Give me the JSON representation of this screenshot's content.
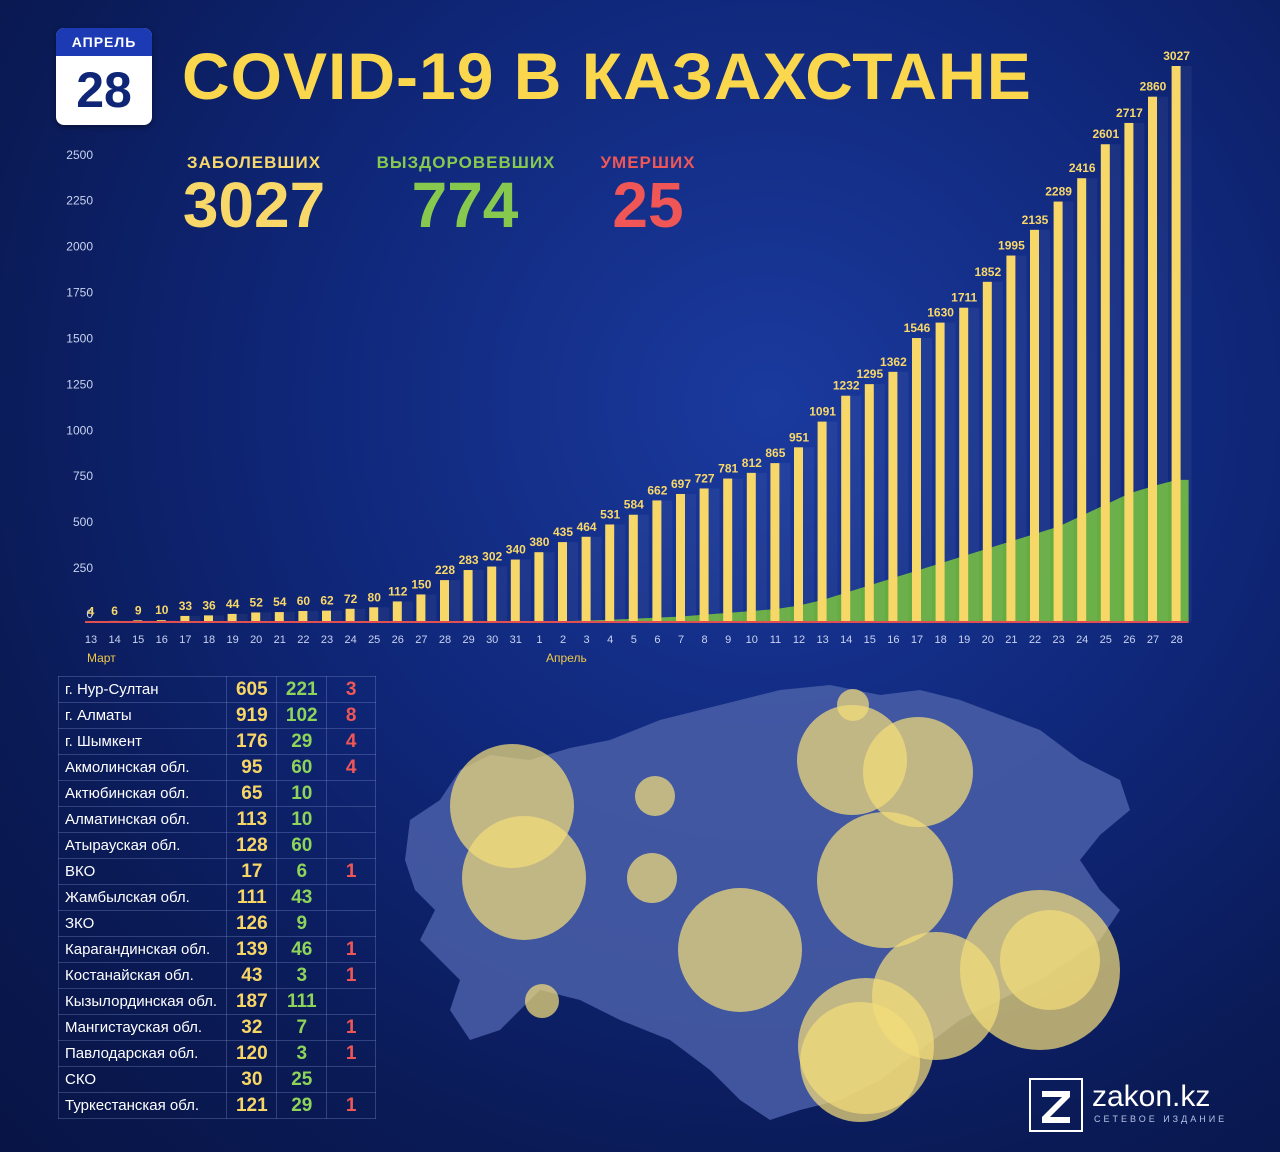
{
  "date": {
    "month": "АПРЕЛЬ",
    "day": "28"
  },
  "title": "COVID-19 В КАЗАХСТАНЕ",
  "stats": {
    "infected": {
      "label": "ЗАБОЛЕВШИХ",
      "value": "3027",
      "color": "#f9d86a"
    },
    "recovered": {
      "label": "ВЫЗДОРОВЕВШИХ",
      "value": "774",
      "color": "#86c94e"
    },
    "deaths": {
      "label": "УМЕРШИХ",
      "value": "25",
      "color": "#f05656"
    }
  },
  "chart_data": {
    "type": "bar",
    "categories": [
      "13",
      "14",
      "15",
      "16",
      "17",
      "18",
      "19",
      "20",
      "21",
      "22",
      "23",
      "24",
      "25",
      "26",
      "27",
      "28",
      "29",
      "30",
      "31",
      "1",
      "2",
      "3",
      "4",
      "5",
      "6",
      "7",
      "8",
      "9",
      "10",
      "11",
      "12",
      "13",
      "14",
      "15",
      "16",
      "17",
      "18",
      "19",
      "20",
      "21",
      "22",
      "23",
      "24",
      "25",
      "26",
      "27",
      "28"
    ],
    "month_labels": [
      "Март",
      "Апрель"
    ],
    "values": [
      4,
      6,
      9,
      10,
      33,
      36,
      44,
      52,
      54,
      60,
      62,
      72,
      80,
      112,
      150,
      228,
      283,
      302,
      340,
      380,
      435,
      464,
      531,
      584,
      662,
      697,
      727,
      781,
      812,
      865,
      951,
      1091,
      1232,
      1295,
      1362,
      1546,
      1630,
      1711,
      1852,
      1995,
      2135,
      2289,
      2416,
      2601,
      2717,
      2860,
      3027
    ],
    "recovered_estimate": [
      0,
      0,
      0,
      0,
      0,
      0,
      0,
      0,
      0,
      0,
      0,
      0,
      0,
      0,
      0,
      0,
      0,
      0,
      1,
      2,
      4,
      8,
      12,
      18,
      24,
      30,
      40,
      50,
      60,
      70,
      90,
      120,
      160,
      200,
      240,
      280,
      320,
      360,
      400,
      440,
      480,
      520,
      580,
      640,
      700,
      740,
      774
    ],
    "yticks": [
      0,
      250,
      500,
      750,
      1000,
      1250,
      1500,
      1750,
      2000,
      2250,
      2500
    ],
    "ylim": [
      0,
      3100
    ],
    "colors": {
      "infected": "#f6d768",
      "recovered": "#6ab33e",
      "deaths": "#e05050"
    }
  },
  "regions": [
    {
      "name": "г. Нур-Султан",
      "infected": "605",
      "recovered": "221",
      "deaths": "3"
    },
    {
      "name": "г. Алматы",
      "infected": "919",
      "recovered": "102",
      "deaths": "8"
    },
    {
      "name": "г. Шымкент",
      "infected": "176",
      "recovered": "29",
      "deaths": "4"
    },
    {
      "name": "Акмолинская обл.",
      "infected": "95",
      "recovered": "60",
      "deaths": "4"
    },
    {
      "name": "Актюбинская обл.",
      "infected": "65",
      "recovered": "10",
      "deaths": ""
    },
    {
      "name": "Алматинская обл.",
      "infected": "113",
      "recovered": "10",
      "deaths": ""
    },
    {
      "name": "Атырауская обл.",
      "infected": "128",
      "recovered": "60",
      "deaths": ""
    },
    {
      "name": "ВКО",
      "infected": "17",
      "recovered": "6",
      "deaths": "1"
    },
    {
      "name": "Жамбылская обл.",
      "infected": "111",
      "recovered": "43",
      "deaths": ""
    },
    {
      "name": "ЗКО",
      "infected": "126",
      "recovered": "9",
      "deaths": ""
    },
    {
      "name": "Карагандинская обл.",
      "infected": "139",
      "recovered": "46",
      "deaths": "1"
    },
    {
      "name": "Костанайская обл.",
      "infected": "43",
      "recovered": "3",
      "deaths": "1"
    },
    {
      "name": "Кызылординская обл.",
      "infected": "187",
      "recovered": "111",
      "deaths": ""
    },
    {
      "name": "Мангистауская обл.",
      "infected": "32",
      "recovered": "7",
      "deaths": "1"
    },
    {
      "name": "Павлодарская обл.",
      "infected": "120",
      "recovered": "3",
      "deaths": "1"
    },
    {
      "name": "СКО",
      "infected": "30",
      "recovered": "25",
      "deaths": ""
    },
    {
      "name": "Туркестанская обл.",
      "infected": "121",
      "recovered": "29",
      "deaths": "1"
    }
  ],
  "map": {
    "land_color": "#4a5fa8",
    "bubble_color": "#f3dc7a"
  },
  "logo": {
    "text": "zakon.kz",
    "subtitle": "СЕТЕВОЕ ИЗДАНИЕ",
    "icon": "z-logo-icon"
  }
}
